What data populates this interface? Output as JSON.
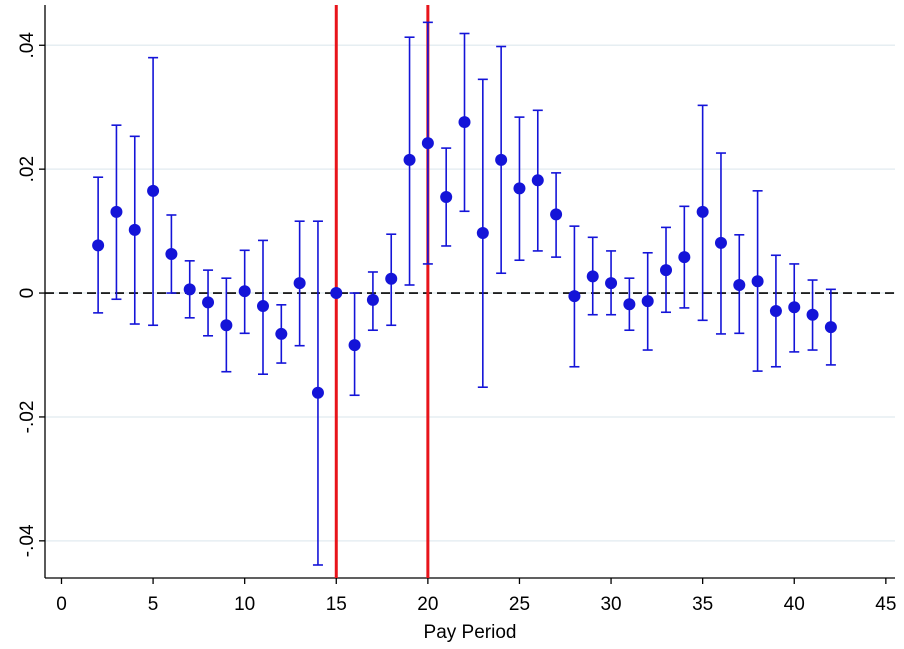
{
  "chart_data": {
    "type": "scatter",
    "xlabel": "Pay Period",
    "x": [
      2,
      3,
      4,
      5,
      6,
      7,
      8,
      9,
      10,
      11,
      12,
      13,
      14,
      15,
      16,
      17,
      18,
      19,
      20,
      21,
      22,
      23,
      24,
      25,
      26,
      27,
      28,
      29,
      30,
      31,
      32,
      33,
      34,
      35,
      36,
      37,
      38,
      39,
      40,
      41,
      42
    ],
    "series": [
      {
        "color": "#1414d8",
        "values": [
          0.0077,
          0.0131,
          0.0102,
          0.0165,
          0.0063,
          0.0006,
          -0.0015,
          -0.0052,
          0.0003,
          -0.0021,
          -0.0066,
          0.0016,
          -0.0161,
          0,
          -0.0084,
          -0.0011,
          0.0023,
          0.0215,
          0.0242,
          0.0155,
          0.0276,
          0.0097,
          0.0215,
          0.0169,
          0.0182,
          0.0127,
          -0.0005,
          0.0027,
          0.0016,
          -0.0018,
          -0.0013,
          0.0037,
          0.0058,
          0.0131,
          0.0081,
          0.0013,
          0.0019,
          -0.0029,
          -0.0023,
          -0.0035,
          -0.0055
        ],
        "lower": [
          -0.0032,
          -0.001,
          -0.005,
          -0.0052,
          0,
          -0.004,
          -0.0069,
          -0.0127,
          -0.0065,
          -0.0131,
          -0.0113,
          -0.0085,
          -0.0439,
          null,
          -0.0165,
          -0.006,
          -0.0052,
          0.0013,
          0.0047,
          0.0076,
          0.0132,
          -0.0152,
          0.0032,
          0.0053,
          0.0068,
          0.0058,
          -0.0119,
          -0.0035,
          -0.0035,
          -0.006,
          -0.0092,
          -0.0031,
          -0.0024,
          -0.0044,
          -0.0066,
          -0.0065,
          -0.0126,
          -0.0119,
          -0.0095,
          -0.0092,
          -0.0116
        ],
        "upper": [
          0.0187,
          0.0271,
          0.0253,
          0.038,
          0.0126,
          0.0052,
          0.0037,
          0.0024,
          0.0069,
          0.0085,
          -0.0019,
          0.0116,
          0.0116,
          null,
          0,
          0.0034,
          0.0095,
          0.0413,
          0.0437,
          0.0234,
          0.0419,
          0.0345,
          0.0398,
          0.0284,
          0.0295,
          0.0194,
          0.0108,
          0.009,
          0.0068,
          0.0024,
          0.0065,
          0.0106,
          0.014,
          0.0303,
          0.0226,
          0.0094,
          0.0165,
          0.0061,
          0.0047,
          0.0021,
          0.0006
        ]
      }
    ],
    "xlim": [
      -0.9,
      45.5
    ],
    "xticks": [
      0,
      5,
      10,
      15,
      20,
      25,
      30,
      35,
      40,
      45
    ],
    "ylim": [
      -0.046,
      0.0465
    ],
    "yticks": [
      {
        "value": -0.04,
        "label": "-.04"
      },
      {
        "value": -0.02,
        "label": "-.02"
      },
      {
        "value": 0,
        "label": "0"
      },
      {
        "value": 0.02,
        "label": ".02"
      },
      {
        "value": 0.04,
        "label": ".04"
      }
    ],
    "grid": true,
    "grid_color": "#e6eef2",
    "vlines": [
      15,
      20
    ],
    "vline_color": "#e8141b",
    "hline": 0,
    "hline_color": "#000000"
  }
}
